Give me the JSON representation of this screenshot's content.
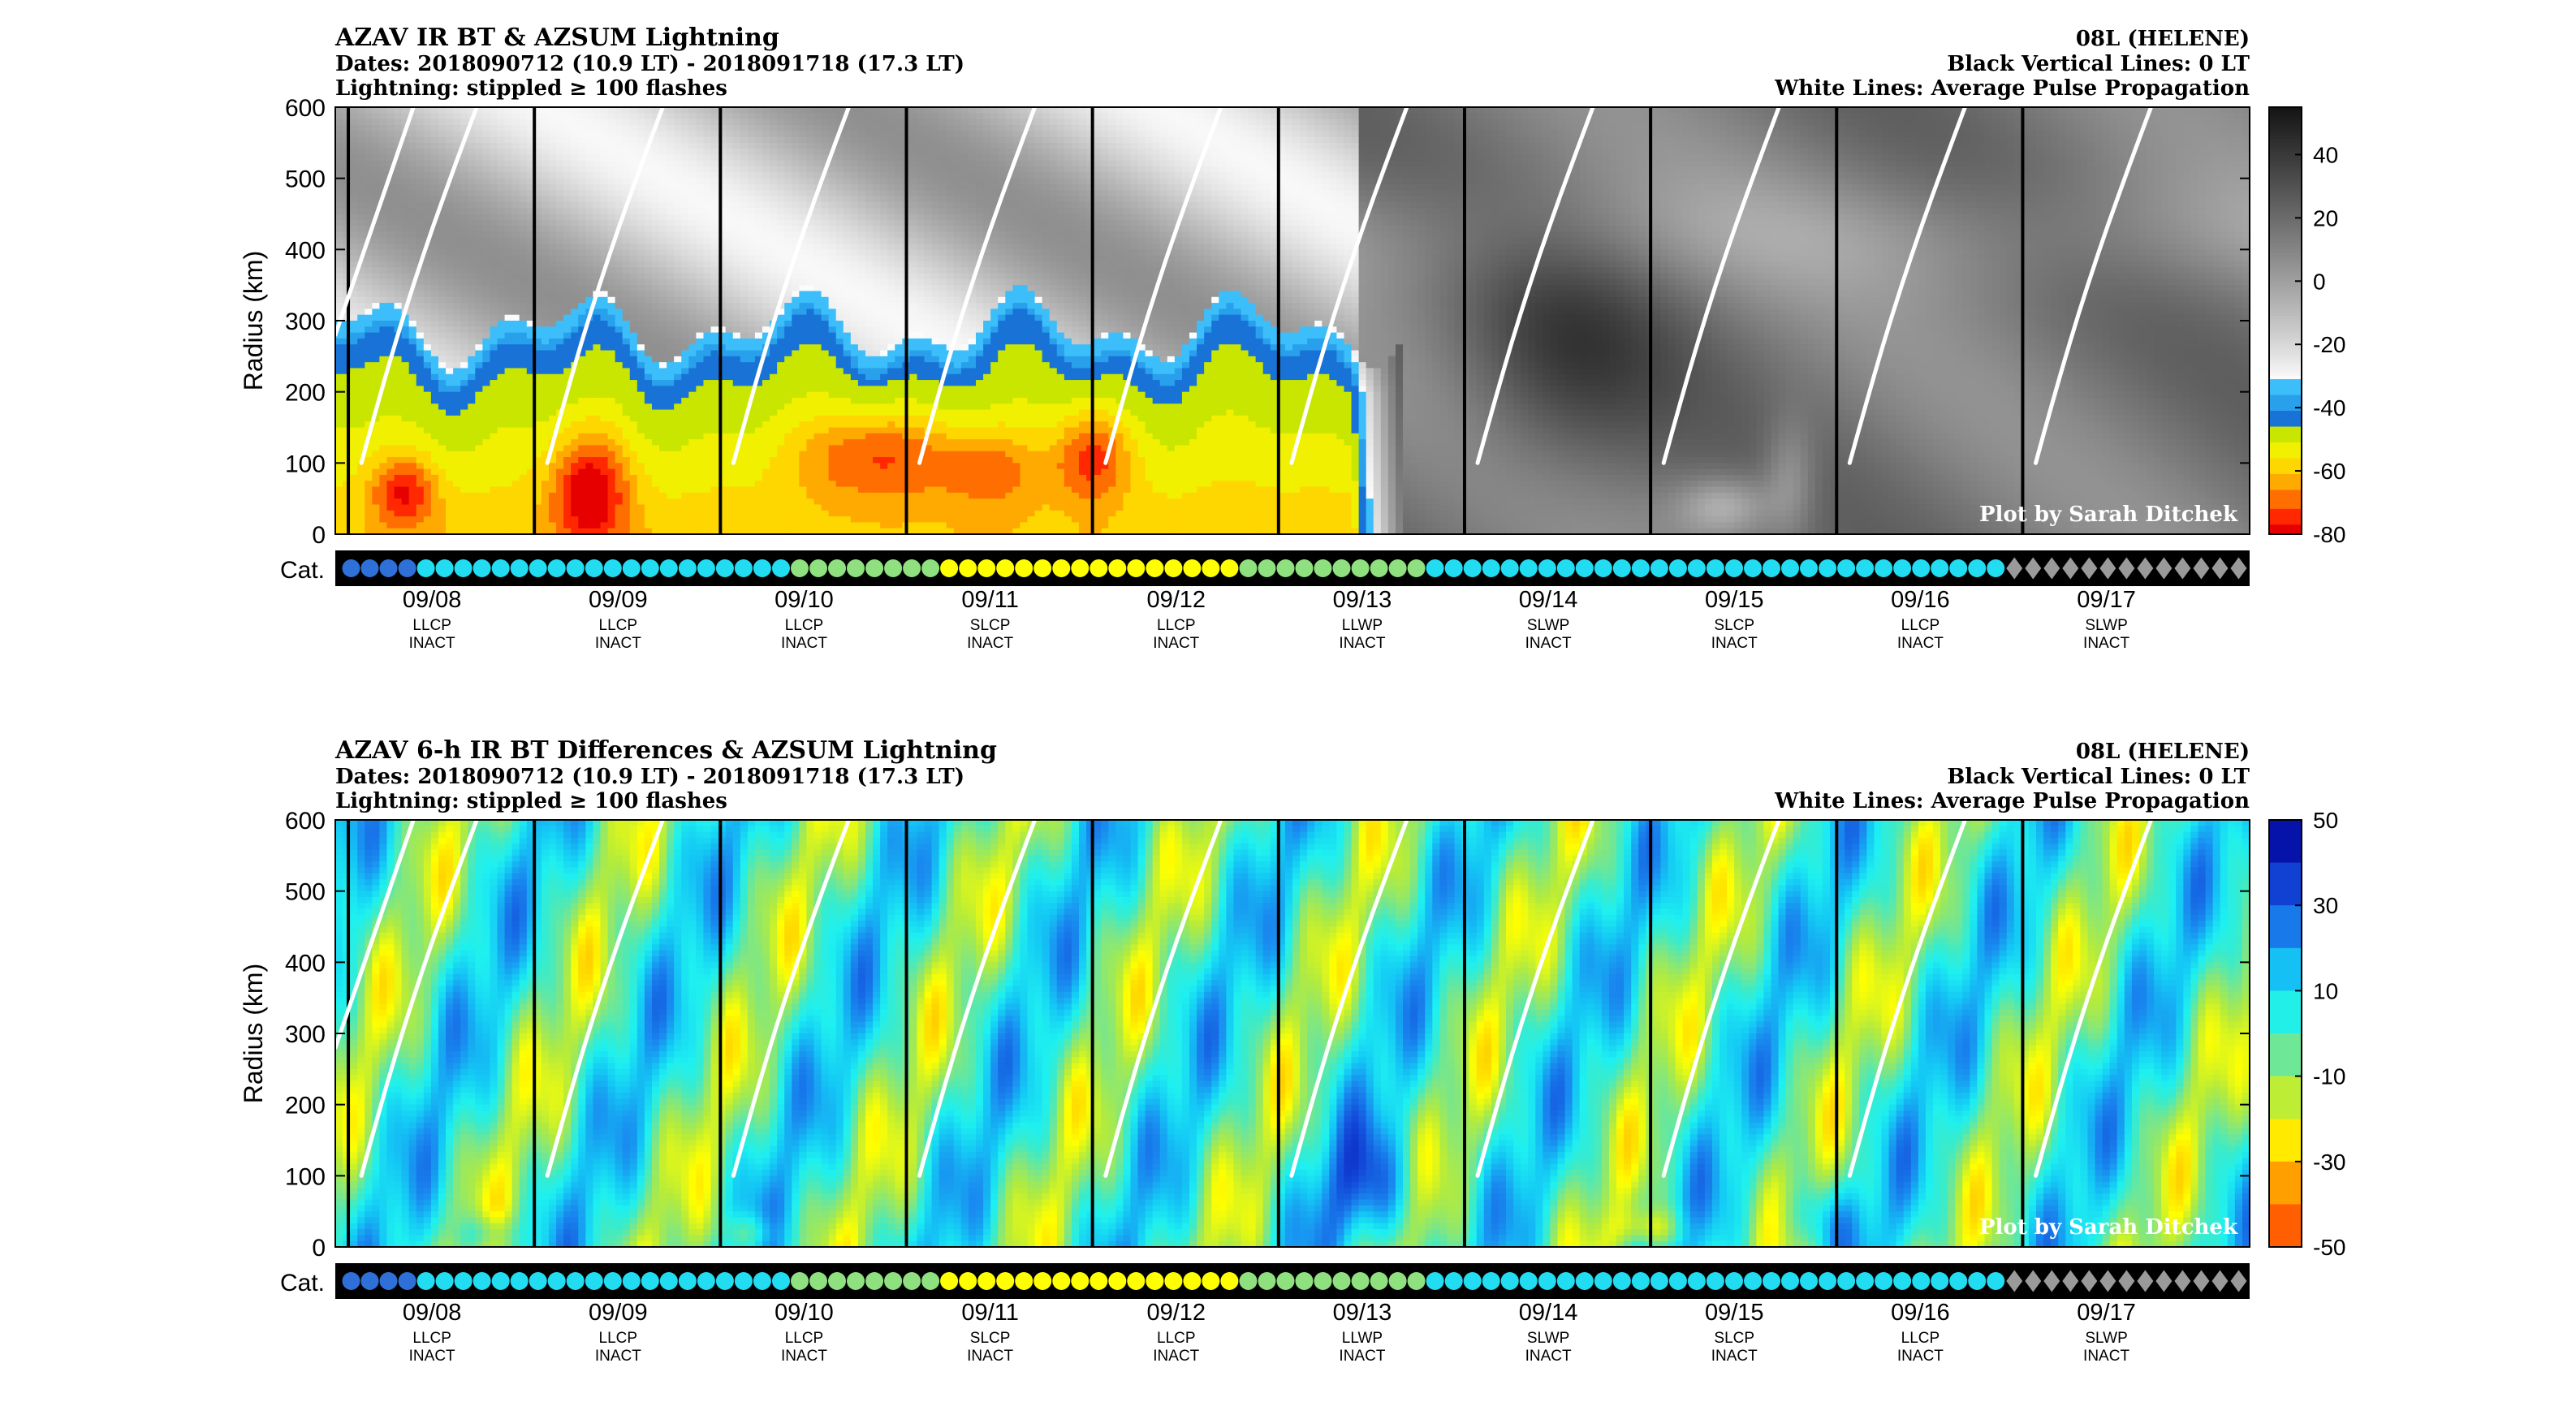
{
  "chart_data": [
    {
      "type": "heatmap",
      "title": "AZAV IR BT & AZSUM Lightning",
      "subtitle_dates": "Dates: 2018090712 (10.9 LT) - 2018091718 (17.3 LT)",
      "subtitle_lightning": "Lightning: stippled ≥ 100 flashes",
      "storm": "08L (HELENE)",
      "note_black": "Black Vertical Lines: 0 LT",
      "note_white": "White Lines: Average Pulse Propagation",
      "credit": "Plot by Sarah Ditchek",
      "ylabel": "Radius (km)",
      "ylim": [
        0,
        600
      ],
      "yticks": [
        0,
        100,
        200,
        300,
        400,
        500,
        600
      ],
      "colorbar_ticks": [
        40,
        20,
        0,
        -20,
        -40,
        -60,
        -80
      ],
      "colorbar_range": [
        -80,
        55
      ],
      "colormap": "brightness-temperature",
      "cat_label": "Cat."
    },
    {
      "type": "heatmap",
      "title": "AZAV 6-h IR BT Differences & AZSUM Lightning",
      "subtitle_dates": "Dates: 2018090712 (10.9 LT) - 2018091718 (17.3 LT)",
      "subtitle_lightning": "Lightning: stippled ≥ 100 flashes",
      "storm": "08L (HELENE)",
      "note_black": "Black Vertical Lines: 0 LT",
      "note_white": "White Lines: Average Pulse Propagation",
      "credit": "Plot by Sarah Ditchek",
      "ylabel": "Radius (km)",
      "ylim": [
        0,
        600
      ],
      "yticks": [
        0,
        100,
        200,
        300,
        400,
        500,
        600
      ],
      "colorbar_ticks": [
        50,
        30,
        10,
        -10,
        -30,
        -50
      ],
      "colorbar_range": [
        -50,
        50
      ],
      "colormap": "diverging-jet-reversed",
      "cat_label": "Cat."
    }
  ],
  "x_axis": {
    "range_days": [
      7.48,
      17.77
    ],
    "black_lines_day": [
      7.55,
      8.55,
      9.55,
      10.55,
      11.55,
      12.55,
      13.55,
      14.55,
      15.55,
      16.55
    ],
    "ticks": [
      {
        "day": 8.0,
        "date": "09/08",
        "stage": "LLCP",
        "status": "INACT"
      },
      {
        "day": 9.0,
        "date": "09/09",
        "stage": "LLCP",
        "status": "INACT"
      },
      {
        "day": 10.0,
        "date": "09/10",
        "stage": "LLCP",
        "status": "INACT"
      },
      {
        "day": 11.0,
        "date": "09/11",
        "stage": "SLCP",
        "status": "INACT"
      },
      {
        "day": 12.0,
        "date": "09/12",
        "stage": "LLCP",
        "status": "INACT"
      },
      {
        "day": 13.0,
        "date": "09/13",
        "stage": "LLWP",
        "status": "INACT"
      },
      {
        "day": 14.0,
        "date": "09/14",
        "stage": "SLWP",
        "status": "INACT"
      },
      {
        "day": 15.0,
        "date": "09/15",
        "stage": "SLCP",
        "status": "INACT"
      },
      {
        "day": 16.0,
        "date": "09/16",
        "stage": "LLCP",
        "status": "INACT"
      },
      {
        "day": 17.0,
        "date": "09/17",
        "stage": "SLWP",
        "status": "INACT"
      }
    ]
  },
  "category_strip": {
    "colors": {
      "blue": "#2f6fd8",
      "cyan": "#22dcf2",
      "green": "#8fe07f",
      "yellow": "#ffff00",
      "diamond": "#9a9a9a"
    },
    "runs": [
      {
        "type": "blue",
        "count": 4
      },
      {
        "type": "cyan",
        "count": 20
      },
      {
        "type": "green",
        "count": 8
      },
      {
        "type": "yellow",
        "count": 16
      },
      {
        "type": "green",
        "count": 10
      },
      {
        "type": "cyan",
        "count": 31
      },
      {
        "type": "diamond",
        "count": 13
      }
    ]
  }
}
